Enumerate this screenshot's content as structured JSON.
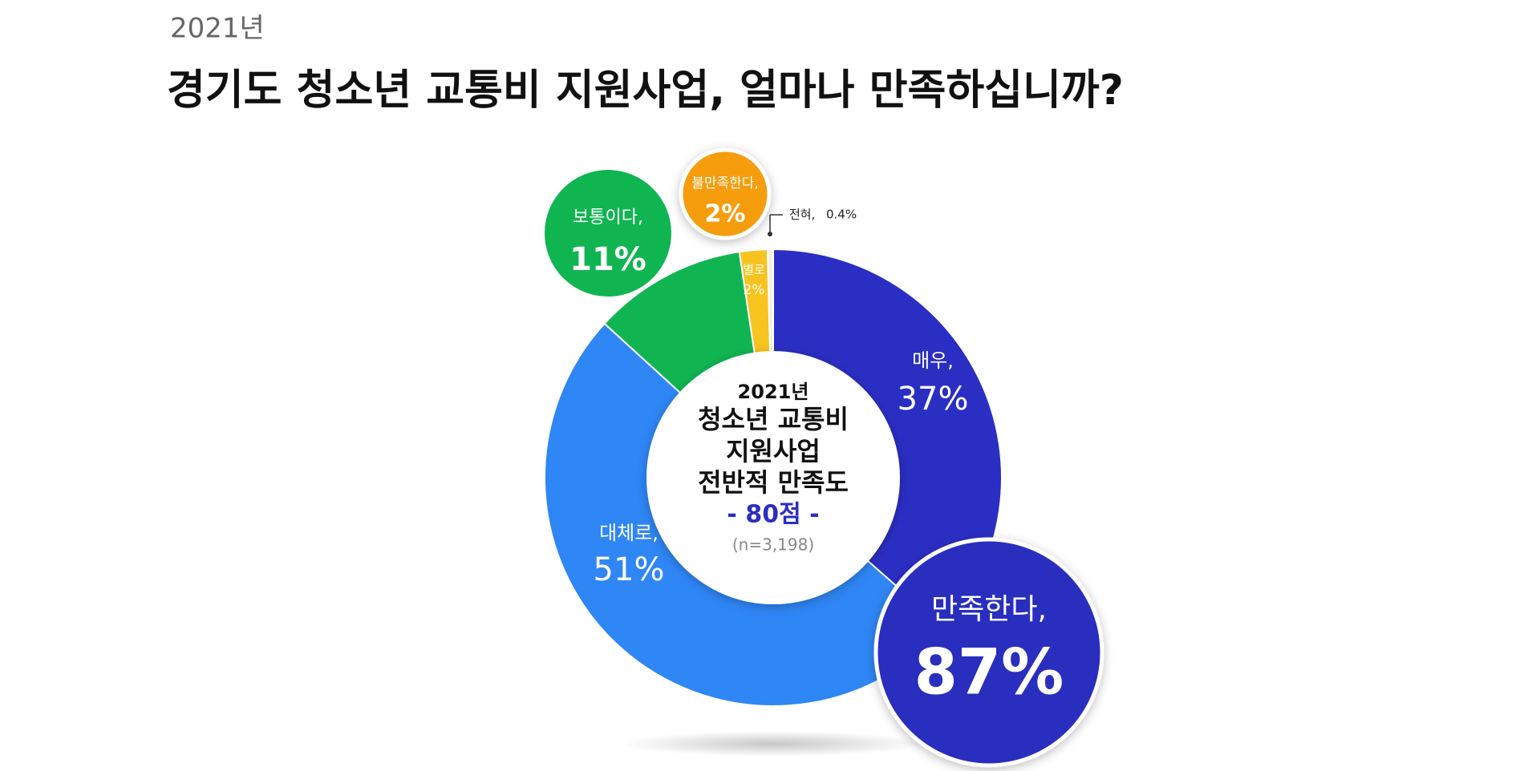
{
  "chart_data": {
    "type": "donut",
    "subtitle": "2021년",
    "title": "경기도 청소년 교통비 지원사업, 얼마나 만족하십니까?",
    "center_text": [
      "2021년",
      "청소년 교통비",
      "지원사업",
      "전반적 만족도"
    ],
    "score": "- 80점 -",
    "sample": "(n=3,198)",
    "categories": [
      "매우,",
      "대체로,",
      "보통이다,",
      "별로",
      "전혀,"
    ],
    "values": [
      37,
      51,
      11,
      2,
      0.4
    ],
    "value_labels": [
      "37%",
      "51%",
      "11%",
      "2%",
      "0.4%"
    ],
    "colors": [
      "#2b2ec3",
      "#2f86f5",
      "#10b552",
      "#f7c31e",
      "#f4f0e0"
    ],
    "groups": [
      {
        "label": "만족한다,",
        "value": 87,
        "value_label": "87%",
        "color": "#2a2dbf"
      },
      {
        "label": "불만족한다,",
        "value": 2,
        "value_label": "2%",
        "color": "#f59d0f"
      }
    ]
  }
}
